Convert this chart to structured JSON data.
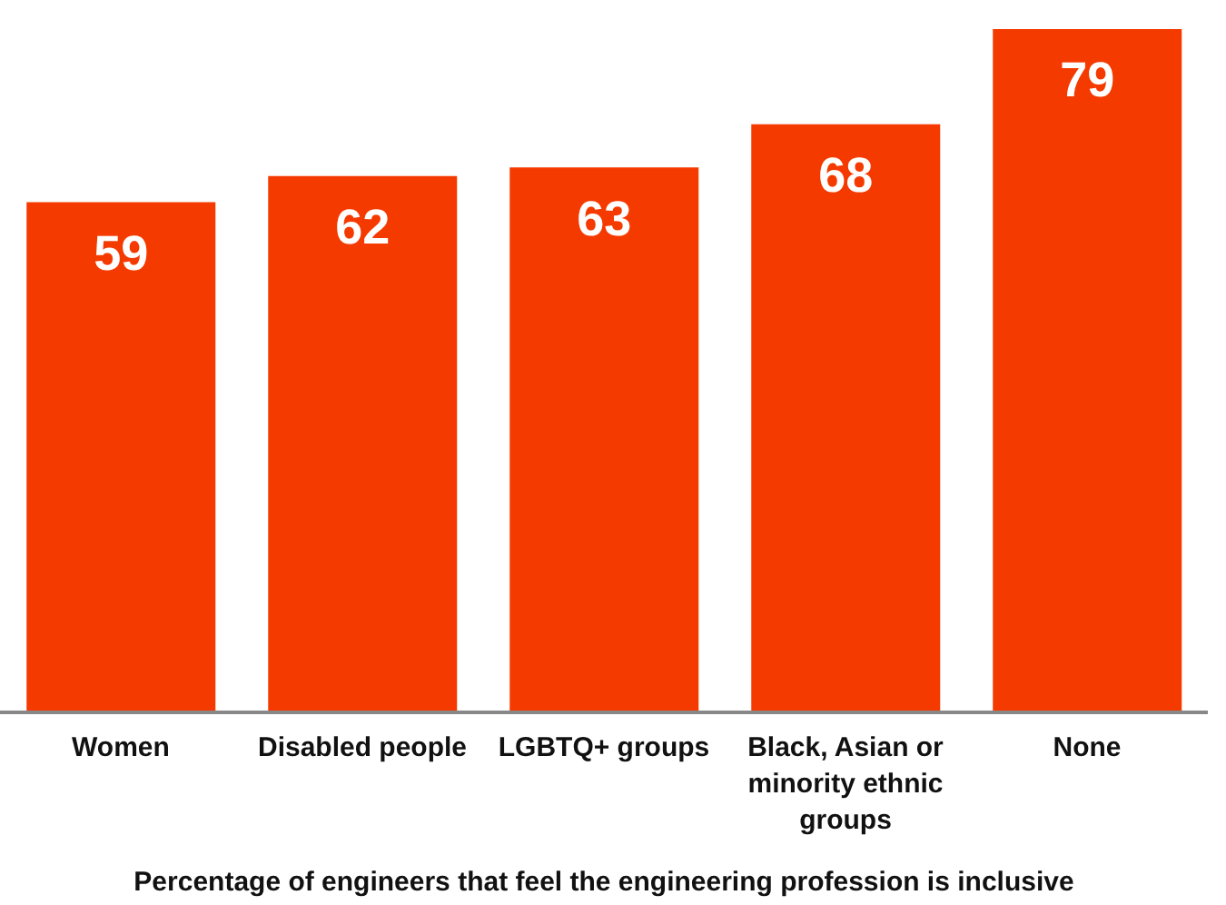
{
  "chart_data": {
    "type": "bar",
    "xlabel": "Percentage of engineers that feel the engineering profession is inclusive",
    "categories": [
      "Women",
      "Disabled people",
      "LGBTQ+ groups",
      "Black, Asian or minority ethnic groups",
      "None"
    ],
    "values": [
      59,
      62,
      63,
      68,
      79
    ],
    "color": "#f53a00",
    "data_labels": true
  }
}
